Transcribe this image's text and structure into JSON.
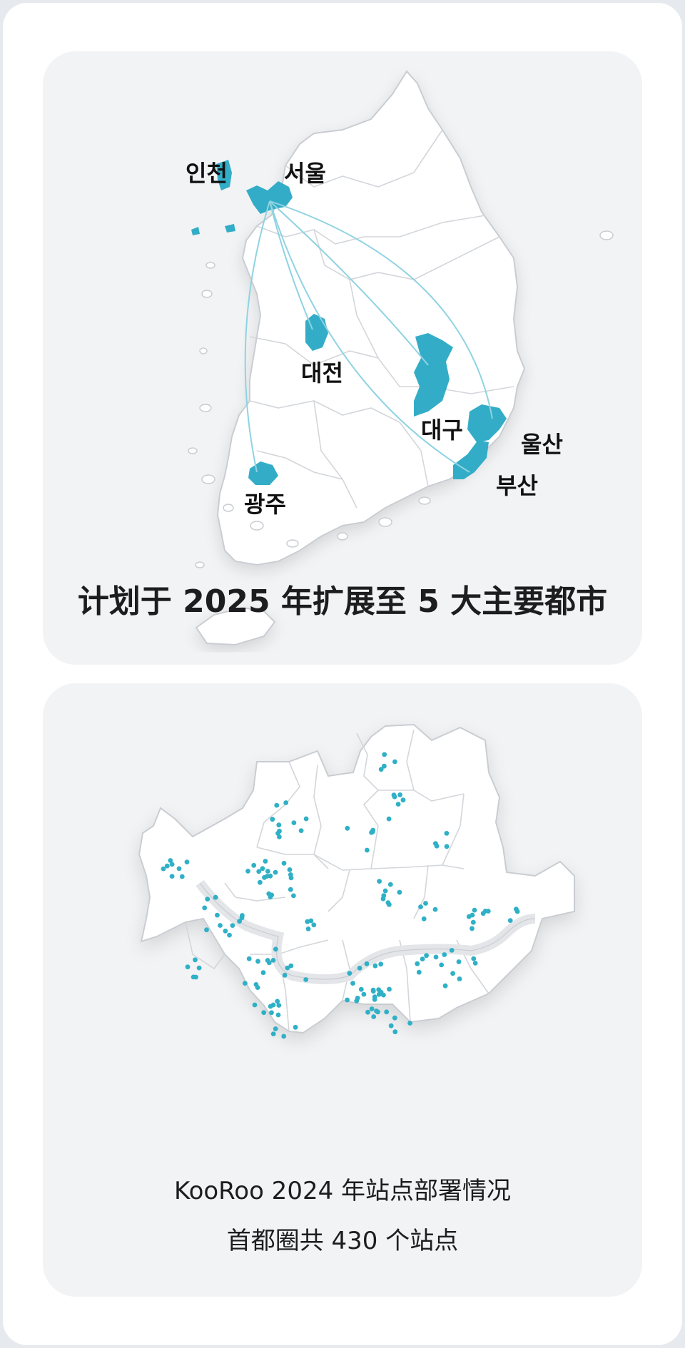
{
  "korea_map": {
    "caption": "计划于 2025 年扩展至 5 大主要都市",
    "highlight_color": "#33adc7",
    "route_color": "#8fd3e2",
    "cities": [
      {
        "name": "인천"
      },
      {
        "name": "서울"
      },
      {
        "name": "대전"
      },
      {
        "name": "대구"
      },
      {
        "name": "울산"
      },
      {
        "name": "부산"
      },
      {
        "name": "광주"
      }
    ]
  },
  "seoul_map": {
    "caption_line1": "KooRoo 2024 年站点部署情况",
    "caption_line2": "首都圈共 430 个站点",
    "dot_color": "#2fb0c6"
  }
}
